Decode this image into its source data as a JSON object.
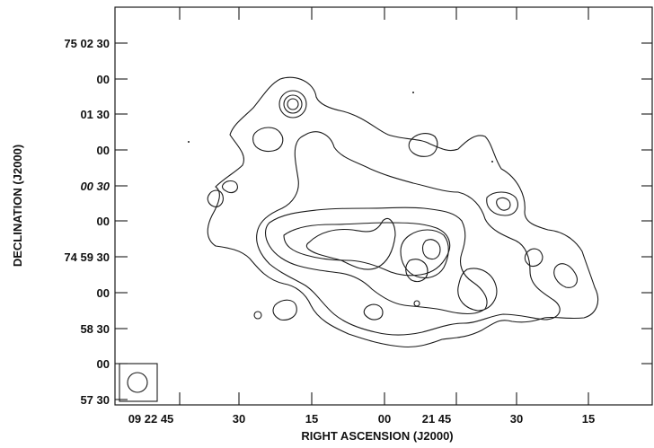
{
  "chart_data": {
    "type": "contour",
    "title": "",
    "xlabel": "RIGHT ASCENSION (J2000)",
    "ylabel": "DECLINATION (J2000)",
    "x_tick_labels": [
      "09 22 45",
      "30",
      "15",
      "00",
      "21 45",
      "30",
      "15"
    ],
    "y_tick_labels": [
      "75 02 30",
      "00",
      "01 30",
      "00",
      "00 30",
      "00",
      "74 59 30",
      "00",
      "58 30",
      "00",
      "57 30"
    ],
    "contour_levels": 4,
    "beam": "circle in bottom-left corner box",
    "grid": false
  }
}
